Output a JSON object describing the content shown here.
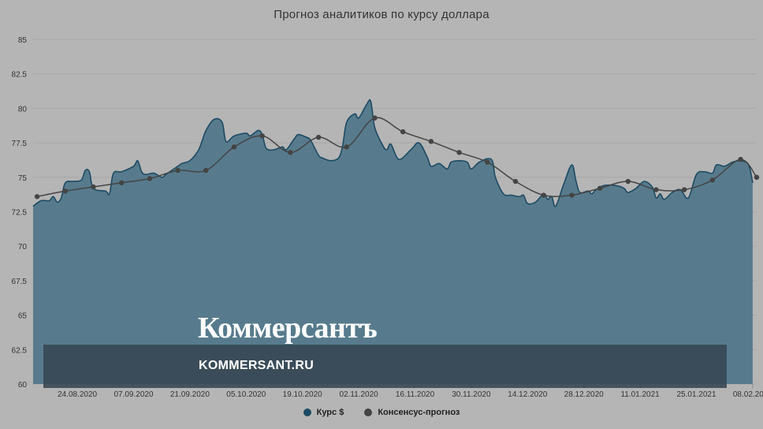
{
  "title": "Прогноз аналитиков по курсу доллара",
  "brand": {
    "logo_text": "Коммерсантъ",
    "url_text": "KOMMERSANT.RU"
  },
  "legend": {
    "series1_label": "Курс $",
    "series2_label": "Консенсус-прогноз"
  },
  "colors": {
    "background": "#b5b5b5",
    "area_fill": "#577b8d",
    "area_stroke": "#1d4a63",
    "forecast_line": "#444444",
    "grid": "#a7a7a7"
  },
  "chart_data": {
    "type": "area",
    "ylim": [
      60,
      85
    ],
    "y_ticks": [
      "85",
      "82.5",
      "80",
      "77.5",
      "75",
      "72.5",
      "70",
      "67.5",
      "65",
      "62.5",
      "60"
    ],
    "x_tick_labels": [
      "24.08.2020",
      "07.09.2020",
      "21.09.2020",
      "05.10.2020",
      "19.10.2020",
      "02.11.2020",
      "16.11.2020",
      "30.11.2020",
      "14.12.2020",
      "28.12.2020",
      "11.01.2021",
      "25.01.2021",
      "08.02.2021"
    ],
    "x_range": [
      "2020-08-13",
      "2021-02-09"
    ],
    "grid": true,
    "legend_position": "bottom-center",
    "series": [
      {
        "name": "Курс $",
        "type": "area",
        "points": [
          [
            "2020-08-13",
            72.9
          ],
          [
            "2020-08-15",
            73.3
          ],
          [
            "2020-08-17",
            73.3
          ],
          [
            "2020-08-18",
            73.6
          ],
          [
            "2020-08-19",
            73.2
          ],
          [
            "2020-08-20",
            73.5
          ],
          [
            "2020-08-21",
            74.6
          ],
          [
            "2020-08-23",
            74.7
          ],
          [
            "2020-08-25",
            74.8
          ],
          [
            "2020-08-26",
            75.5
          ],
          [
            "2020-08-27",
            75.4
          ],
          [
            "2020-08-28",
            74.2
          ],
          [
            "2020-08-31",
            74.0
          ],
          [
            "2020-09-01",
            73.8
          ],
          [
            "2020-09-02",
            75.3
          ],
          [
            "2020-09-04",
            75.4
          ],
          [
            "2020-09-07",
            75.8
          ],
          [
            "2020-09-08",
            76.2
          ],
          [
            "2020-09-09",
            75.4
          ],
          [
            "2020-09-10",
            75.2
          ],
          [
            "2020-09-12",
            75.3
          ],
          [
            "2020-09-14",
            75.0
          ],
          [
            "2020-09-15",
            75.2
          ],
          [
            "2020-09-17",
            75.6
          ],
          [
            "2020-09-18",
            75.8
          ],
          [
            "2020-09-19",
            76.0
          ],
          [
            "2020-09-21",
            76.2
          ],
          [
            "2020-09-23",
            76.9
          ],
          [
            "2020-09-24",
            77.6
          ],
          [
            "2020-09-25",
            78.4
          ],
          [
            "2020-09-27",
            79.2
          ],
          [
            "2020-09-29",
            79.0
          ],
          [
            "2020-09-30",
            77.6
          ],
          [
            "2020-10-02",
            78.0
          ],
          [
            "2020-10-05",
            78.2
          ],
          [
            "2020-10-06",
            78.0
          ],
          [
            "2020-10-08",
            78.4
          ],
          [
            "2020-10-09",
            78.1
          ],
          [
            "2020-10-10",
            77.1
          ],
          [
            "2020-10-12",
            77.0
          ],
          [
            "2020-10-14",
            77.2
          ],
          [
            "2020-10-15",
            77.0
          ],
          [
            "2020-10-17",
            77.8
          ],
          [
            "2020-10-18",
            78.1
          ],
          [
            "2020-10-20",
            77.9
          ],
          [
            "2020-10-21",
            77.7
          ],
          [
            "2020-10-23",
            76.6
          ],
          [
            "2020-10-24",
            76.4
          ],
          [
            "2020-10-26",
            76.2
          ],
          [
            "2020-10-28",
            76.4
          ],
          [
            "2020-10-29",
            77.3
          ],
          [
            "2020-10-30",
            79.0
          ],
          [
            "2020-11-01",
            79.6
          ],
          [
            "2020-11-02",
            79.3
          ],
          [
            "2020-11-04",
            80.3
          ],
          [
            "2020-11-05",
            80.5
          ],
          [
            "2020-11-06",
            78.6
          ],
          [
            "2020-11-08",
            77.3
          ],
          [
            "2020-11-09",
            77.0
          ],
          [
            "2020-11-10",
            77.4
          ],
          [
            "2020-11-12",
            76.3
          ],
          [
            "2020-11-15",
            77.0
          ],
          [
            "2020-11-17",
            77.5
          ],
          [
            "2020-11-19",
            76.5
          ],
          [
            "2020-11-20",
            75.8
          ],
          [
            "2020-11-22",
            76.0
          ],
          [
            "2020-11-24",
            75.6
          ],
          [
            "2020-11-25",
            76.1
          ],
          [
            "2020-11-27",
            76.2
          ],
          [
            "2020-11-29",
            76.1
          ],
          [
            "2020-11-30",
            75.6
          ],
          [
            "2020-12-02",
            76.1
          ],
          [
            "2020-12-05",
            76.3
          ],
          [
            "2020-12-06",
            75.0
          ],
          [
            "2020-12-08",
            73.8
          ],
          [
            "2020-12-10",
            73.7
          ],
          [
            "2020-12-12",
            73.6
          ],
          [
            "2020-12-13",
            73.7
          ],
          [
            "2020-12-14",
            73.1
          ],
          [
            "2020-12-16",
            73.2
          ],
          [
            "2020-12-18",
            73.8
          ],
          [
            "2020-12-19",
            73.4
          ],
          [
            "2020-12-20",
            73.6
          ],
          [
            "2020-12-21",
            72.9
          ],
          [
            "2020-12-23",
            74.5
          ],
          [
            "2020-12-25",
            75.9
          ],
          [
            "2020-12-26",
            74.8
          ],
          [
            "2020-12-27",
            73.9
          ],
          [
            "2020-12-29",
            74.0
          ],
          [
            "2020-12-30",
            73.8
          ],
          [
            "2020-12-31",
            74.1
          ],
          [
            "2021-01-02",
            74.4
          ],
          [
            "2021-01-05",
            74.4
          ],
          [
            "2021-01-07",
            74.2
          ],
          [
            "2021-01-08",
            73.9
          ],
          [
            "2021-01-10",
            74.2
          ],
          [
            "2021-01-12",
            74.7
          ],
          [
            "2021-01-14",
            74.3
          ],
          [
            "2021-01-15",
            73.5
          ],
          [
            "2021-01-16",
            73.8
          ],
          [
            "2021-01-17",
            73.4
          ],
          [
            "2021-01-19",
            73.9
          ],
          [
            "2021-01-21",
            74.1
          ],
          [
            "2021-01-23",
            73.5
          ],
          [
            "2021-01-25",
            75.2
          ],
          [
            "2021-01-27",
            75.4
          ],
          [
            "2021-01-29",
            75.3
          ],
          [
            "2021-01-30",
            75.9
          ],
          [
            "2021-02-01",
            75.8
          ],
          [
            "2021-02-03",
            76.1
          ],
          [
            "2021-02-05",
            76.2
          ],
          [
            "2021-02-07",
            75.9
          ],
          [
            "2021-02-08",
            74.6
          ]
        ]
      },
      {
        "name": "Консенсус-прогноз",
        "type": "line",
        "points": [
          [
            "2020-08-14",
            73.6
          ],
          [
            "2020-08-21",
            74.0
          ],
          [
            "2020-08-28",
            74.3
          ],
          [
            "2020-09-04",
            74.6
          ],
          [
            "2020-09-11",
            74.9
          ],
          [
            "2020-09-18",
            75.5
          ],
          [
            "2020-09-25",
            75.5
          ],
          [
            "2020-10-02",
            77.2
          ],
          [
            "2020-10-09",
            78.0
          ],
          [
            "2020-10-16",
            76.8
          ],
          [
            "2020-10-23",
            77.9
          ],
          [
            "2020-10-30",
            77.2
          ],
          [
            "2020-11-06",
            79.3
          ],
          [
            "2020-11-13",
            78.3
          ],
          [
            "2020-11-20",
            77.6
          ],
          [
            "2020-11-27",
            76.8
          ],
          [
            "2020-12-04",
            76.1
          ],
          [
            "2020-12-11",
            74.7
          ],
          [
            "2020-12-18",
            73.7
          ],
          [
            "2020-12-25",
            73.7
          ],
          [
            "2021-01-01",
            74.2
          ],
          [
            "2021-01-08",
            74.7
          ],
          [
            "2021-01-15",
            74.1
          ],
          [
            "2021-01-22",
            74.1
          ],
          [
            "2021-01-29",
            74.8
          ],
          [
            "2021-02-05",
            76.3
          ],
          [
            "2021-02-09",
            75.0
          ]
        ]
      }
    ]
  }
}
